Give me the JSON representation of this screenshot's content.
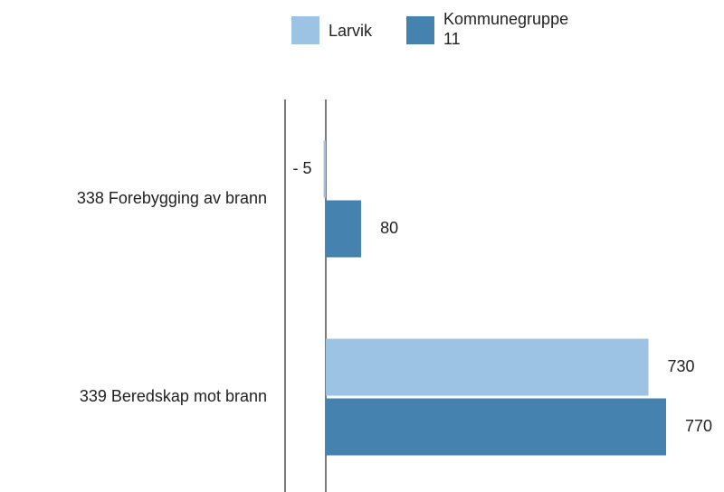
{
  "chart_data": {
    "type": "bar",
    "orientation": "horizontal",
    "categories": [
      "338 Forebygging av brann",
      "339 Beredskap mot brann"
    ],
    "series": [
      {
        "name": "Larvik",
        "color": "#9cc3e4",
        "values": [
          -5,
          730
        ],
        "value_labels": [
          "- 5",
          "730"
        ]
      },
      {
        "name": "Kommunegruppe 11",
        "color": "#4682b0",
        "values": [
          80,
          770
        ],
        "value_labels": [
          "80",
          "770"
        ]
      }
    ]
  }
}
